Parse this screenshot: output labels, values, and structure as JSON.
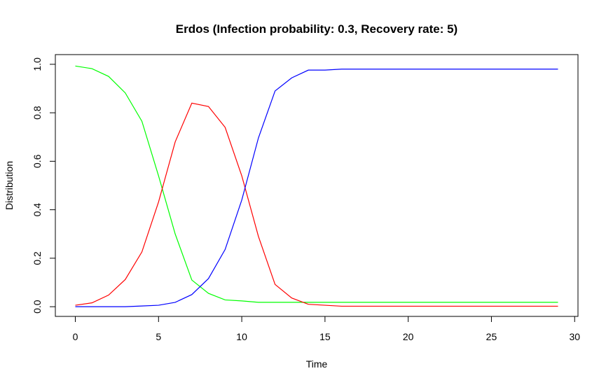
{
  "chart_data": {
    "type": "line",
    "title": "Erdos (Infection probability: 0.3, Recovery rate: 5)",
    "xlabel": "Time",
    "ylabel": "Distribution",
    "xlim": [
      -1.2,
      30.2
    ],
    "ylim": [
      -0.04,
      1.04
    ],
    "x_ticks": [
      0,
      5,
      10,
      15,
      20,
      25,
      30
    ],
    "y_ticks": [
      0.0,
      0.2,
      0.4,
      0.6,
      0.8,
      1.0
    ],
    "x_tick_labels": [
      "0",
      "5",
      "10",
      "15",
      "20",
      "25",
      "30"
    ],
    "y_tick_labels": [
      "0.0",
      "0.2",
      "0.4",
      "0.6",
      "0.8",
      "1.0"
    ],
    "grid": false,
    "legend": "none",
    "x": [
      0,
      1,
      2,
      3,
      4,
      5,
      6,
      7,
      8,
      9,
      10,
      11,
      12,
      13,
      14,
      15,
      16,
      17,
      18,
      19,
      20,
      21,
      22,
      23,
      24,
      25,
      26,
      27,
      28,
      29
    ],
    "series": [
      {
        "color": "#00ff00",
        "values": [
          0.993,
          0.982,
          0.95,
          0.882,
          0.765,
          0.54,
          0.3,
          0.11,
          0.055,
          0.028,
          0.024,
          0.018,
          0.018,
          0.018,
          0.018,
          0.018,
          0.018,
          0.018,
          0.018,
          0.018,
          0.018,
          0.018,
          0.018,
          0.018,
          0.018,
          0.018,
          0.018,
          0.018,
          0.018,
          0.018
        ]
      },
      {
        "color": "#ff0000",
        "values": [
          0.006,
          0.016,
          0.048,
          0.112,
          0.226,
          0.432,
          0.68,
          0.84,
          0.826,
          0.74,
          0.54,
          0.29,
          0.092,
          0.036,
          0.01,
          0.006,
          0.002,
          0.002,
          0.002,
          0.002,
          0.002,
          0.002,
          0.002,
          0.002,
          0.002,
          0.002,
          0.002,
          0.002,
          0.002,
          0.002
        ]
      },
      {
        "color": "#0000ff",
        "values": [
          0.0,
          0.0,
          0.0,
          0.0,
          0.003,
          0.006,
          0.018,
          0.05,
          0.116,
          0.236,
          0.44,
          0.696,
          0.89,
          0.944,
          0.976,
          0.976,
          0.98,
          0.98,
          0.98,
          0.98,
          0.98,
          0.98,
          0.98,
          0.98,
          0.98,
          0.98,
          0.98,
          0.98,
          0.98,
          0.98
        ]
      }
    ]
  }
}
